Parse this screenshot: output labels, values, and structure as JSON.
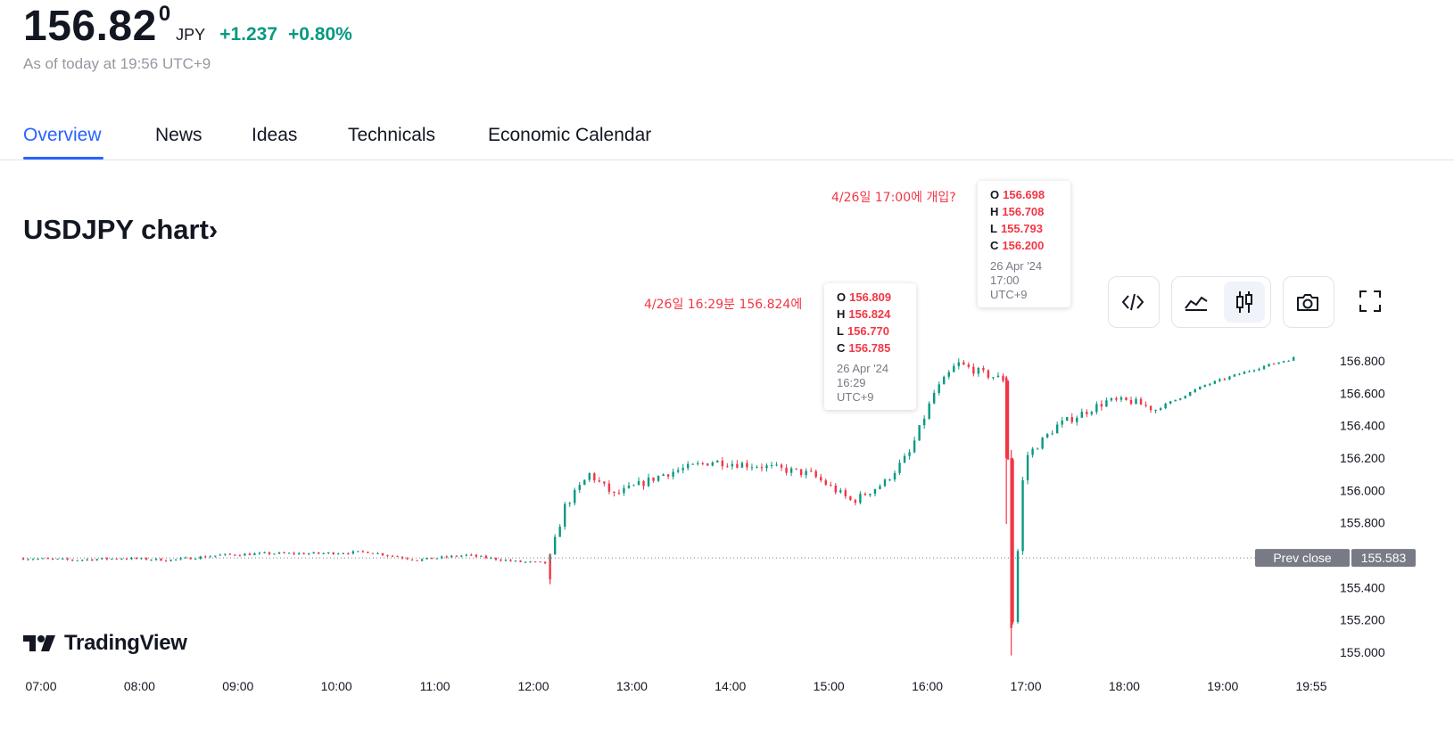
{
  "header": {
    "price_main": "156.82",
    "price_sup": "0",
    "currency": "JPY",
    "change": "+1.237",
    "change_pct": "+0.80%",
    "as_of": "As of today at 19:56 UTC+9"
  },
  "tabs": [
    {
      "label": "Overview",
      "active": true
    },
    {
      "label": "News"
    },
    {
      "label": "Ideas"
    },
    {
      "label": "Technicals"
    },
    {
      "label": "Economic Calendar"
    }
  ],
  "chart_title": "USDJPY chart",
  "chart_title_chevron": "›",
  "toolbar": {
    "embed": "code-icon",
    "area": "area-chart-icon",
    "candles": "candlestick-icon",
    "snapshot": "camera-icon",
    "fullscreen": "fullscreen-icon"
  },
  "tooltip1": {
    "o": "156.809",
    "h": "156.824",
    "l": "156.770",
    "c": "156.785",
    "date": "26 Apr '24",
    "time": "16:29 UTC+9"
  },
  "tooltip2": {
    "o": "156.698",
    "h": "156.708",
    "l": "155.793",
    "c": "156.200",
    "date": "26 Apr '24",
    "time": "17:00 UTC+9"
  },
  "ohlc_labels": {
    "o": "O",
    "h": "H",
    "l": "L",
    "c": "C"
  },
  "annotations": {
    "a1": "4/26일 16:29분 156.824에",
    "a2": "4/26일 17:00에 개입?"
  },
  "logo_text": "TradingView",
  "prev_close_label": "Prev close",
  "prev_close_value": "155.583",
  "colors": {
    "up": "#089981",
    "down": "#f23645",
    "accent": "#2962ff"
  },
  "chart_data": {
    "type": "candlestick",
    "title": "USDJPY chart",
    "x_ticks": [
      "07:00",
      "08:00",
      "09:00",
      "10:00",
      "11:00",
      "12:00",
      "13:00",
      "14:00",
      "15:00",
      "16:00",
      "17:00",
      "18:00",
      "19:00",
      "19:55"
    ],
    "y_ticks": [
      "156.800",
      "156.600",
      "156.400",
      "156.200",
      "156.000",
      "155.800",
      "155.400",
      "155.200",
      "155.000"
    ],
    "ylim": [
      154.95,
      156.85
    ],
    "prev_close": 155.583,
    "series": [
      {
        "name": "USDJPY",
        "points": [
          [
            "07:00",
            155.58
          ],
          [
            "07:30",
            155.57
          ],
          [
            "08:00",
            155.58
          ],
          [
            "08:30",
            155.57
          ],
          [
            "09:00",
            155.6
          ],
          [
            "09:30",
            155.61
          ],
          [
            "10:00",
            155.61
          ],
          [
            "10:30",
            155.62
          ],
          [
            "11:00",
            155.57
          ],
          [
            "11:30",
            155.6
          ],
          [
            "12:00",
            155.56
          ],
          [
            "12:20",
            155.55
          ],
          [
            "12:30",
            155.9
          ],
          [
            "12:45",
            156.1
          ],
          [
            "13:00",
            155.97
          ],
          [
            "13:30",
            156.1
          ],
          [
            "14:00",
            156.18
          ],
          [
            "14:30",
            156.15
          ],
          [
            "15:00",
            156.1
          ],
          [
            "15:15",
            156.0
          ],
          [
            "15:25",
            155.93
          ],
          [
            "15:45",
            156.05
          ],
          [
            "16:00",
            156.23
          ],
          [
            "16:15",
            156.6
          ],
          [
            "16:29",
            156.785
          ],
          [
            "16:45",
            156.72
          ],
          [
            "16:59",
            156.68
          ],
          [
            "17:00",
            156.2
          ],
          [
            "17:02",
            155.05
          ],
          [
            "17:10",
            156.2
          ],
          [
            "17:30",
            156.4
          ],
          [
            "18:00",
            156.55
          ],
          [
            "18:15",
            156.55
          ],
          [
            "18:30",
            156.5
          ],
          [
            "19:00",
            156.65
          ],
          [
            "19:30",
            156.75
          ],
          [
            "19:55",
            156.82
          ]
        ]
      }
    ]
  }
}
